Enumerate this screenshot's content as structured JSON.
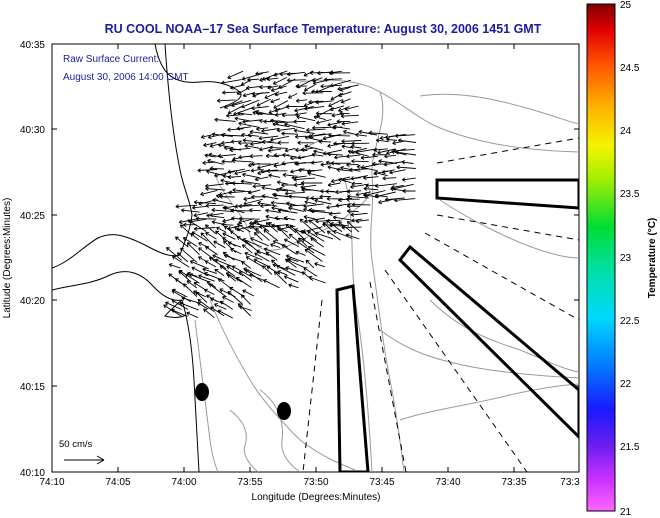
{
  "title": "RU COOL  NOAA–17  Sea Surface Temperature:  August 30, 2006 1451 GMT",
  "annotation": {
    "line1": "Raw Surface Current:",
    "line2": "August 30, 2006 14:00 GMT"
  },
  "axes": {
    "xlabel": "Longitude (Degrees:Minutes)",
    "ylabel": "Latitude (Degrees:Minutes)",
    "x_ticks": [
      "74:10",
      "74:05",
      "74:00",
      "73:55",
      "73:50",
      "73:45",
      "73:40",
      "73:35",
      "73:3"
    ],
    "y_ticks": [
      "40:35",
      "40:30",
      "40:25",
      "40:20",
      "40:15",
      "40:10"
    ]
  },
  "scale_arrow": {
    "label": "50 cm/s"
  },
  "colorbar": {
    "label": "Temperature (°C)",
    "ticks": [
      "25",
      "24.5",
      "24",
      "23.5",
      "23",
      "22.5",
      "22",
      "21.5",
      "21"
    ]
  },
  "colors": {
    "title": "#1c1ca0",
    "annotation": "#1c1ca0",
    "land_outline": "#000000",
    "bathymetry": "#9a9a9a",
    "vectors": "#000000"
  },
  "icons": [
    "scale-arrow-icon",
    "current-vector-icon",
    "station-marker-icon",
    "sampling-transect-icon"
  ]
}
